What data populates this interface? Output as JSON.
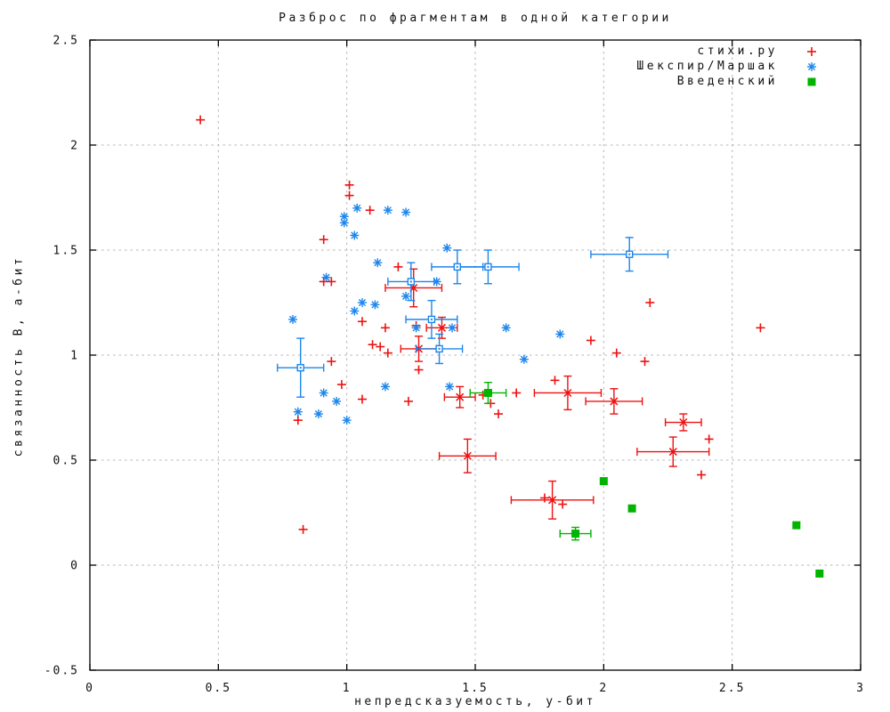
{
  "chart_data": {
    "type": "scatter",
    "title": "Разброс по фрагментам в одной категории",
    "xlabel": "непредсказуемость, у-бит",
    "ylabel": "связанность В, а-бит",
    "xlim": [
      0,
      3
    ],
    "ylim": [
      -0.5,
      2.5
    ],
    "xticks": [
      0,
      0.5,
      1,
      1.5,
      2,
      2.5,
      3
    ],
    "xtick_labels": [
      "0",
      "0.5",
      "1",
      "1.5",
      "2",
      "2.5",
      "3"
    ],
    "yticks": [
      -0.5,
      0,
      0.5,
      1,
      1.5,
      2,
      2.5
    ],
    "ytick_labels": [
      "-0.5",
      "0",
      "0.5",
      "1",
      "1.5",
      "2",
      "2.5"
    ],
    "grid": "dotted",
    "grid_color": "#b4b4b4",
    "border_color": "#000000",
    "legend_position": "top-right-inside",
    "series": [
      {
        "name": "стихи.ру",
        "color": "#ee1111",
        "marker": "plus",
        "errorbar_marker": "cross",
        "points": [
          [
            0.43,
            2.12
          ],
          [
            1.01,
            1.81
          ],
          [
            1.01,
            1.76
          ],
          [
            1.09,
            1.69
          ],
          [
            0.91,
            1.55
          ],
          [
            1.2,
            1.42
          ],
          [
            0.91,
            1.35
          ],
          [
            0.94,
            1.35
          ],
          [
            1.27,
            1.14
          ],
          [
            1.15,
            1.13
          ],
          [
            1.06,
            1.16
          ],
          [
            1.1,
            1.05
          ],
          [
            1.13,
            1.04
          ],
          [
            1.16,
            1.01
          ],
          [
            0.94,
            0.97
          ],
          [
            1.28,
            0.93
          ],
          [
            0.98,
            0.86
          ],
          [
            1.06,
            0.79
          ],
          [
            1.24,
            0.78
          ],
          [
            0.81,
            0.69
          ],
          [
            1.53,
            0.81
          ],
          [
            1.56,
            0.77
          ],
          [
            1.59,
            0.72
          ],
          [
            1.66,
            0.82
          ],
          [
            1.81,
            0.88
          ],
          [
            1.95,
            1.07
          ],
          [
            2.05,
            1.01
          ],
          [
            2.16,
            0.97
          ],
          [
            2.18,
            1.25
          ],
          [
            2.61,
            1.13
          ],
          [
            2.41,
            0.6
          ],
          [
            2.38,
            0.43
          ],
          [
            1.77,
            0.32
          ],
          [
            1.84,
            0.29
          ],
          [
            0.83,
            0.17
          ]
        ],
        "errorbars": [
          [
            1.26,
            1.32,
            0.11,
            0.09
          ],
          [
            1.37,
            1.13,
            0.06,
            0.05
          ],
          [
            1.28,
            1.03,
            0.07,
            0.06
          ],
          [
            1.44,
            0.8,
            0.06,
            0.05
          ],
          [
            1.47,
            0.52,
            0.11,
            0.08
          ],
          [
            1.86,
            0.82,
            0.13,
            0.08
          ],
          [
            2.04,
            0.78,
            0.11,
            0.06
          ],
          [
            1.8,
            0.31,
            0.16,
            0.09
          ],
          [
            2.31,
            0.68,
            0.07,
            0.04
          ],
          [
            2.27,
            0.54,
            0.14,
            0.07
          ]
        ]
      },
      {
        "name": "Шекспир/Маршак",
        "color": "#1d86ec",
        "marker": "asterisk",
        "errorbar_marker": "open-square",
        "points": [
          [
            1.04,
            1.7
          ],
          [
            1.16,
            1.69
          ],
          [
            1.23,
            1.68
          ],
          [
            0.99,
            1.66
          ],
          [
            0.99,
            1.63
          ],
          [
            1.03,
            1.57
          ],
          [
            1.39,
            1.51
          ],
          [
            1.12,
            1.44
          ],
          [
            0.92,
            1.37
          ],
          [
            1.35,
            1.35
          ],
          [
            1.23,
            1.28
          ],
          [
            1.06,
            1.25
          ],
          [
            1.11,
            1.24
          ],
          [
            1.03,
            1.21
          ],
          [
            0.79,
            1.17
          ],
          [
            1.27,
            1.13
          ],
          [
            1.41,
            1.13
          ],
          [
            1.62,
            1.13
          ],
          [
            1.83,
            1.1
          ],
          [
            1.69,
            0.98
          ],
          [
            1.15,
            0.85
          ],
          [
            1.4,
            0.85
          ],
          [
            0.91,
            0.82
          ],
          [
            0.96,
            0.78
          ],
          [
            0.81,
            0.73
          ],
          [
            0.89,
            0.72
          ],
          [
            1.0,
            0.69
          ]
        ],
        "errorbars": [
          [
            0.82,
            0.94,
            0.09,
            0.14
          ],
          [
            1.25,
            1.35,
            0.09,
            0.09
          ],
          [
            1.43,
            1.42,
            0.1,
            0.08
          ],
          [
            1.55,
            1.42,
            0.12,
            0.08
          ],
          [
            1.33,
            1.17,
            0.1,
            0.09
          ],
          [
            1.36,
            1.03,
            0.09,
            0.07
          ],
          [
            2.1,
            1.48,
            0.15,
            0.08
          ]
        ]
      },
      {
        "name": "Введенский",
        "color": "#00b400",
        "marker": "square",
        "errorbar_marker": "square",
        "points": [
          [
            2.0,
            0.4
          ],
          [
            2.11,
            0.27
          ],
          [
            2.75,
            0.19
          ],
          [
            2.84,
            -0.04
          ]
        ],
        "errorbars": [
          [
            1.55,
            0.82,
            0.07,
            0.05
          ],
          [
            1.89,
            0.15,
            0.06,
            0.03
          ]
        ]
      }
    ]
  }
}
